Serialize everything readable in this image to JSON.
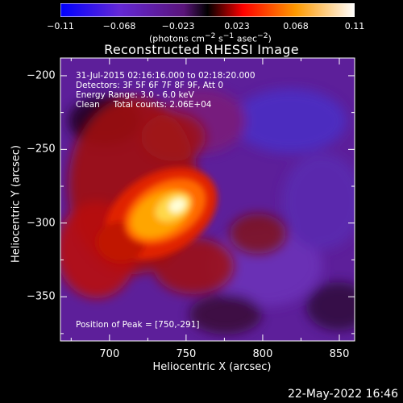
{
  "colorbar": {
    "tick_labels": [
      "−0.11",
      "−0.068",
      "−0.023",
      "0.023",
      "0.068",
      "0.11"
    ],
    "units_html": "(photons cm<sup>−2</sup> s<sup>−1</sup> asec<sup>−2</sup>)",
    "range": [
      -0.11,
      0.11
    ],
    "colors": [
      "#0000ff",
      "#7a1cb0",
      "#120012",
      "#ff0000",
      "#ffd000",
      "#ffffff"
    ]
  },
  "image": {
    "title": "Reconstructed RHESSI Image",
    "annotation_lines": [
      "31-Jul-2015 02:16:16.000 to 02:18:20.000",
      "Detectors: 3F 5F 6F 7F 8F 9F, Att 0",
      "Energy Range: 3.0 - 6.0 keV",
      "Clean     Total counts: 2.06E+04"
    ],
    "peak_label": "Position of Peak = [750,-291]",
    "peak_position": [
      750,
      -291
    ]
  },
  "axes": {
    "x_label": "Heliocentric X (arcsec)",
    "y_label": "Heliocentric Y (arcsec)",
    "x_ticks": [
      "700",
      "750",
      "800",
      "850"
    ],
    "y_ticks": [
      "−200",
      "−250",
      "−300",
      "−350"
    ],
    "x_range": [
      668,
      860
    ],
    "y_range": [
      -380,
      -188
    ]
  },
  "footer": {
    "timestamp": "22-May-2022 16:46"
  }
}
